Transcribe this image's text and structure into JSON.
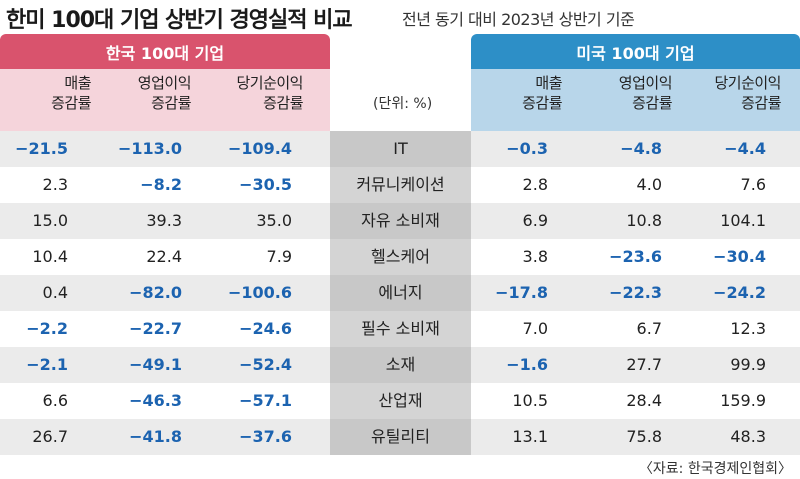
{
  "title": "한미 100대 기업 상반기 경영실적 비교",
  "subtitle": "전년 동기 대비 2023년 상반기 기준",
  "unit": "(단위: %)",
  "source": "〈자료: 한국경제인협회〉",
  "colors": {
    "kr_header": "#d9536d",
    "kr_subheader": "#f5d4db",
    "us_header": "#2d8fc7",
    "us_subheader": "#b8d6ea",
    "negative": "#1c63b0"
  },
  "chart_data": {
    "type": "table",
    "groups": [
      {
        "name": "한국 100대 기업",
        "columns": [
          [
            "매출",
            "증감률"
          ],
          [
            "영업이익",
            "증감률"
          ],
          [
            "당기순이익",
            "증감률"
          ]
        ]
      },
      {
        "name": "미국 100대 기업",
        "columns": [
          [
            "매출",
            "증감률"
          ],
          [
            "영업이익",
            "증감률"
          ],
          [
            "당기순이익",
            "증감률"
          ]
        ]
      }
    ],
    "rows": [
      {
        "sector": "IT",
        "kr": [
          "-21.5",
          "-113.0",
          "-109.4"
        ],
        "us": [
          "-0.3",
          "-4.8",
          "-4.4"
        ]
      },
      {
        "sector": "커뮤니케이션",
        "kr": [
          "2.3",
          "-8.2",
          "-30.5"
        ],
        "us": [
          "2.8",
          "4.0",
          "7.6"
        ]
      },
      {
        "sector": "자유 소비재",
        "kr": [
          "15.0",
          "39.3",
          "35.0"
        ],
        "us": [
          "6.9",
          "10.8",
          "104.1"
        ]
      },
      {
        "sector": "헬스케어",
        "kr": [
          "10.4",
          "22.4",
          "7.9"
        ],
        "us": [
          "3.8",
          "-23.6",
          "-30.4"
        ]
      },
      {
        "sector": "에너지",
        "kr": [
          "0.4",
          "-82.0",
          "-100.6"
        ],
        "us": [
          "-17.8",
          "-22.3",
          "-24.2"
        ]
      },
      {
        "sector": "필수 소비재",
        "kr": [
          "-2.2",
          "-22.7",
          "-24.6"
        ],
        "us": [
          "7.0",
          "6.7",
          "12.3"
        ]
      },
      {
        "sector": "소재",
        "kr": [
          "-2.1",
          "-49.1",
          "-52.4"
        ],
        "us": [
          "-1.6",
          "27.7",
          "99.9"
        ]
      },
      {
        "sector": "산업재",
        "kr": [
          "6.6",
          "-46.3",
          "-57.1"
        ],
        "us": [
          "10.5",
          "28.4",
          "159.9"
        ]
      },
      {
        "sector": "유틸리티",
        "kr": [
          "26.7",
          "-41.8",
          "-37.6"
        ],
        "us": [
          "13.1",
          "75.8",
          "48.3"
        ]
      }
    ]
  }
}
